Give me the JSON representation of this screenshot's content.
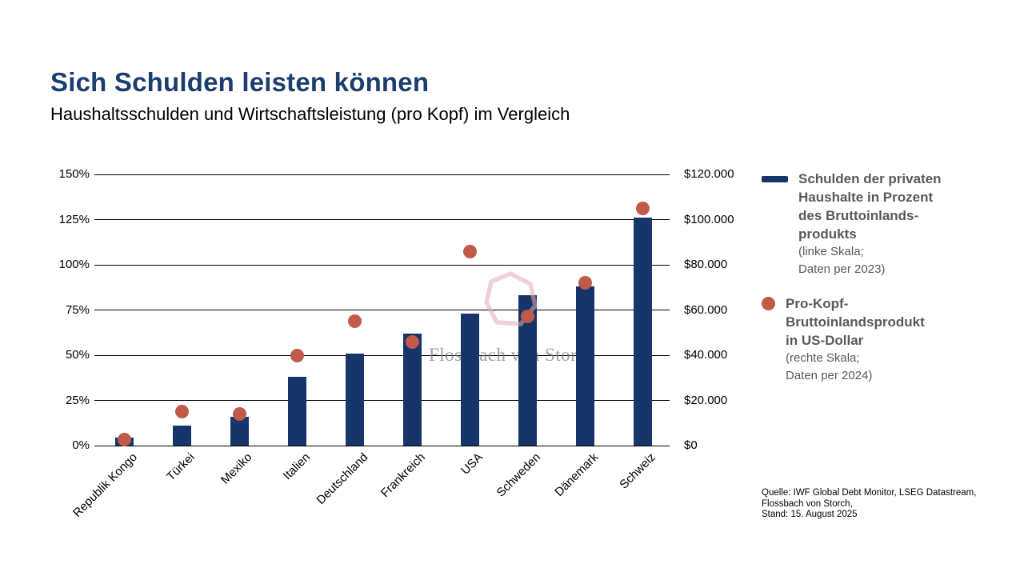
{
  "title": "Sich Schulden leisten können",
  "subtitle": "Haushaltsschulden und Wirtschaftsleistung (pro Kopf) im Vergleich",
  "colors": {
    "bar": "#16366b",
    "dot": "#c05a49",
    "title": "#1c3d6e",
    "legend_text": "#595959",
    "gridline": "#000000",
    "watermark_pink": "#e2aeb0"
  },
  "watermark": {
    "text": "Flossbach von Storch"
  },
  "legend": {
    "items": [
      {
        "swatch": "bar-swatch",
        "title_lines": [
          "Schulden der privaten",
          "Haushalte in Prozent",
          "des Bruttoinlands-",
          "produkts"
        ],
        "note_lines": [
          "(linke Skala;",
          "Daten per 2023)"
        ]
      },
      {
        "swatch": "dot-swatch",
        "title_lines": [
          "Pro-Kopf-",
          "Bruttoinlandsprodukt",
          "in US-Dollar"
        ],
        "note_lines": [
          "(rechte Skala;",
          "Daten per 2024)"
        ]
      }
    ]
  },
  "source_lines": [
    "Quelle: IWF Global Debt Monitor, LSEG Datastream,",
    "Flossbach von Storch,",
    "Stand: 15. August 2025"
  ],
  "chart_data": {
    "type": "bar",
    "categories": [
      "Republik Kongo",
      "Türkei",
      "Mexiko",
      "Italien",
      "Deutschland",
      "Frankreich",
      "USA",
      "Schweden",
      "Dänemark",
      "Schweiz"
    ],
    "series": [
      {
        "name": "Schulden der privaten Haushalte in Prozent des Bruttoinlandsprodukts (linke Skala; Daten per 2023)",
        "type": "bar",
        "axis": "left",
        "unit": "% des BIP",
        "values": [
          4.5,
          11,
          16,
          38,
          51,
          62,
          73,
          83,
          88,
          126
        ]
      },
      {
        "name": "Pro-Kopf-Bruttoinlandsprodukt in US-Dollar (rechte Skala; Daten per 2024)",
        "type": "scatter",
        "axis": "right",
        "unit": "USD",
        "values": [
          2500,
          15000,
          14000,
          40000,
          55000,
          46000,
          86000,
          57000,
          72000,
          105000
        ]
      }
    ],
    "left_axis": {
      "ticks": [
        "0%",
        "25%",
        "50%",
        "75%",
        "100%",
        "125%",
        "150%"
      ],
      "range": [
        0,
        150
      ]
    },
    "right_axis": {
      "ticks": [
        "$0",
        "$20.000",
        "$40.000",
        "$60.000",
        "$80.000",
        "$100.000",
        "$120.000"
      ],
      "range": [
        0,
        120000
      ]
    },
    "grid": true,
    "legend_position": "right",
    "title": "Sich Schulden leisten können",
    "subtitle": "Haushaltsschulden und Wirtschaftsleistung (pro Kopf) im Vergleich"
  }
}
